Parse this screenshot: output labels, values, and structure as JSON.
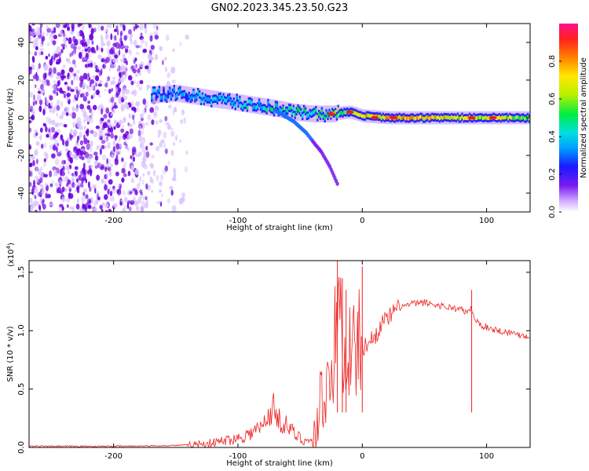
{
  "figure": {
    "title": "GN02.2023.345.23.50.G23"
  },
  "chart_data": [
    {
      "type": "heatmap",
      "xlabel": "Height of straight line (km)",
      "ylabel": "Frequency (Hz)",
      "xlim": [
        -268,
        135
      ],
      "ylim": [
        -50,
        50
      ],
      "xticks": [
        "-200",
        "-100",
        "0",
        "100"
      ],
      "yticks": [
        "-40",
        "-20",
        "0",
        "20",
        "40"
      ],
      "colorbar": {
        "label": "Normalized spectral amplitude",
        "range": [
          0,
          1
        ],
        "ticks": [
          "0.0",
          "0.2",
          "0.4",
          "0.6",
          "0.8"
        ]
      },
      "colors": {
        "noise": "#6b00e0",
        "faint": "#d8c4ff",
        "band_high": "#e81f1f"
      },
      "band_center": [
        {
          "x": -170,
          "y": 12,
          "amp": 0.45
        },
        {
          "x": -150,
          "y": 13,
          "amp": 0.45
        },
        {
          "x": -130,
          "y": 11,
          "amp": 0.5
        },
        {
          "x": -110,
          "y": 9,
          "amp": 0.5
        },
        {
          "x": -90,
          "y": 7,
          "amp": 0.55
        },
        {
          "x": -70,
          "y": 5,
          "amp": 0.55
        },
        {
          "x": -55,
          "y": 3,
          "amp": 0.6
        },
        {
          "x": -40,
          "y": 2,
          "amp": 0.6
        },
        {
          "x": -25,
          "y": 2,
          "amp": 0.7
        },
        {
          "x": -10,
          "y": 3,
          "amp": 0.7
        },
        {
          "x": 0,
          "y": 1,
          "amp": 0.85
        },
        {
          "x": 20,
          "y": 0,
          "amp": 0.95
        },
        {
          "x": 50,
          "y": 0,
          "amp": 0.9
        },
        {
          "x": 80,
          "y": 0,
          "amp": 0.8
        },
        {
          "x": 100,
          "y": 0,
          "amp": 0.85
        },
        {
          "x": 135,
          "y": 0,
          "amp": 0.7
        }
      ],
      "branch": [
        {
          "x": -70,
          "y": 4
        },
        {
          "x": -55,
          "y": -2
        },
        {
          "x": -45,
          "y": -8
        },
        {
          "x": -38,
          "y": -14
        },
        {
          "x": -33,
          "y": -18
        },
        {
          "x": -26,
          "y": -26
        },
        {
          "x": -20,
          "y": -35
        }
      ],
      "noise_x_range": [
        -268,
        -140
      ]
    },
    {
      "type": "line",
      "xlabel": "Height of straight line (km)",
      "ylabel": "SNR (10 * v/v)",
      "scale_label": "(x10",
      "scale_exp": "4",
      "scale_close": ")",
      "xlim": [
        -268,
        135
      ],
      "ylim": [
        0,
        1.6
      ],
      "xticks": [
        "-200",
        "-100",
        "0",
        "100"
      ],
      "yticks": [
        "0.0",
        "0.5",
        "1.0",
        "1.5"
      ],
      "color": "#ee2222",
      "series": [
        {
          "x": [
            -268,
            -240,
            -200,
            -160,
            -140,
            -120,
            -110,
            -100,
            -90,
            -80,
            -75,
            -72,
            -68,
            -65,
            -60,
            -55,
            -50,
            -45,
            -40,
            -38,
            -35,
            -32,
            -30,
            -28,
            -26,
            -24,
            -22,
            -20,
            -18,
            -16,
            -14,
            -12,
            -10,
            -8,
            -5,
            -2,
            0,
            5,
            10,
            15,
            20,
            25,
            30,
            40,
            50,
            60,
            70,
            80,
            85,
            88,
            90,
            95,
            100,
            110,
            120,
            135
          ],
          "y": [
            0.01,
            0.01,
            0.01,
            0.015,
            0.02,
            0.04,
            0.06,
            0.08,
            0.12,
            0.18,
            0.28,
            0.35,
            0.25,
            0.22,
            0.18,
            0.12,
            0.08,
            0.06,
            0.05,
            0.1,
            0.3,
            0.5,
            0.4,
            0.55,
            0.7,
            0.75,
            0.9,
            0.95,
            1.2,
            1.0,
            0.7,
            0.9,
            0.85,
            0.8,
            0.85,
            0.9,
            0.85,
            0.9,
            0.95,
            1.05,
            1.1,
            1.15,
            1.2,
            1.23,
            1.24,
            1.22,
            1.2,
            1.18,
            1.15,
            1.2,
            1.1,
            1.05,
            1.03,
            1.0,
            0.98,
            0.95
          ]
        }
      ],
      "spikes": [
        {
          "x": -20,
          "y": 1.6
        },
        {
          "x": -16,
          "y": 1.45
        },
        {
          "x": -13,
          "y": 1.35
        },
        {
          "x": 0,
          "y": 1.55
        },
        {
          "x": 88,
          "y": 1.35
        }
      ]
    }
  ]
}
